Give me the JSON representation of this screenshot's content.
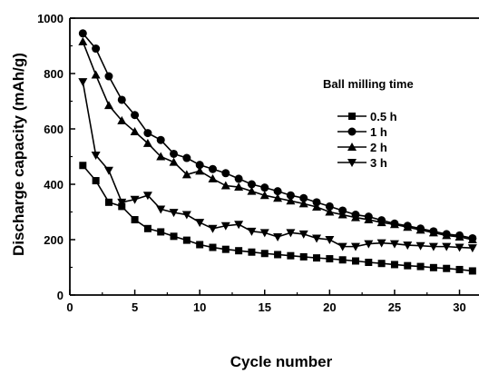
{
  "chart_data": {
    "type": "line",
    "xlabel": "Cycle number",
    "ylabel": "Discharge capacity (mAh/g)",
    "xlim": [
      0,
      31.5
    ],
    "ylim": [
      0,
      1000
    ],
    "x_ticks": [
      0,
      5,
      10,
      15,
      20,
      25,
      30
    ],
    "y_ticks": [
      0,
      200,
      400,
      600,
      800,
      1000
    ],
    "legend_title": "Ball milling time",
    "legend_position": "top-right",
    "grid": false,
    "x": [
      1,
      2,
      3,
      4,
      5,
      6,
      7,
      8,
      9,
      10,
      11,
      12,
      13,
      14,
      15,
      16,
      17,
      18,
      19,
      20,
      21,
      22,
      23,
      24,
      25,
      26,
      27,
      28,
      29,
      30,
      31
    ],
    "series": [
      {
        "name": "0.5 h",
        "marker": "square",
        "values": [
          468,
          413,
          335,
          320,
          272,
          240,
          228,
          212,
          198,
          182,
          172,
          165,
          160,
          155,
          150,
          146,
          142,
          138,
          134,
          131,
          127,
          123,
          118,
          114,
          110,
          106,
          103,
          99,
          96,
          92,
          87
        ]
      },
      {
        "name": "1 h",
        "marker": "circle",
        "values": [
          945,
          890,
          790,
          705,
          650,
          585,
          560,
          510,
          495,
          470,
          455,
          440,
          420,
          400,
          388,
          375,
          360,
          350,
          335,
          320,
          305,
          290,
          283,
          270,
          258,
          250,
          240,
          230,
          220,
          215,
          205
        ]
      },
      {
        "name": "2 h",
        "marker": "triangle-up",
        "values": [
          915,
          795,
          685,
          630,
          590,
          548,
          500,
          480,
          435,
          448,
          420,
          395,
          390,
          375,
          360,
          350,
          340,
          330,
          318,
          300,
          290,
          280,
          272,
          262,
          255,
          245,
          235,
          225,
          215,
          210,
          200
        ]
      },
      {
        "name": "3 h",
        "marker": "triangle-down",
        "values": [
          770,
          505,
          450,
          335,
          345,
          360,
          310,
          298,
          290,
          262,
          240,
          250,
          255,
          230,
          225,
          210,
          225,
          220,
          205,
          200,
          175,
          175,
          185,
          188,
          185,
          180,
          178,
          175,
          175,
          172,
          170
        ]
      }
    ]
  }
}
